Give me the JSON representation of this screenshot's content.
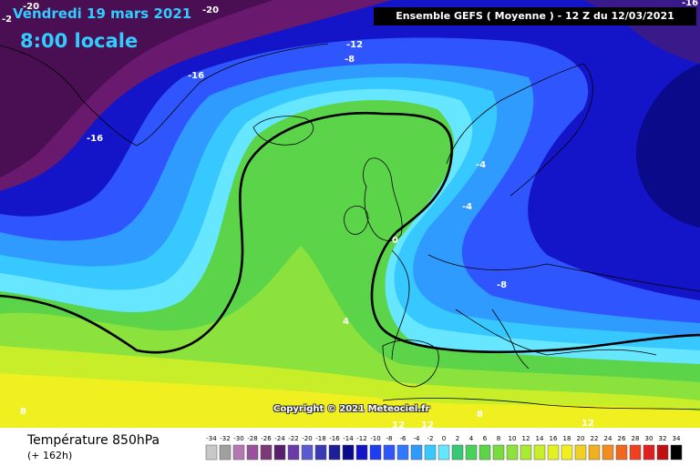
{
  "header": {
    "date_label": "Vendredi 19 mars 2021",
    "time_label": "8:00 locale",
    "ensemble_label": "Ensemble GEFS  ( Moyenne )  - 12 Z du 12/03/2021"
  },
  "map": {
    "copyright": "Copyright © 2021 Meteociel.fr",
    "contour_labels": [
      "-20",
      "-20",
      "-16",
      "-2",
      "-16",
      "-12",
      "-8",
      "-4",
      "-4",
      "0",
      "-8",
      "4",
      "8",
      "8",
      "12",
      "12",
      "12",
      "-16"
    ],
    "colors": {
      "purple": "#6a1a6e",
      "dark_blue": "#1414c8",
      "blue": "#2f55ff",
      "sky": "#2f9bff",
      "light_sky": "#36c8ff",
      "cyan": "#66e6ff",
      "green": "#5cd44a",
      "light_green": "#8ce23c",
      "yellow_green": "#c8ee2a",
      "yellow": "#f0f020"
    }
  },
  "legend": {
    "title": "Température 850hPa",
    "subtitle": "(+ 162h)",
    "scale_values": [
      "-34",
      "-32",
      "-30",
      "-28",
      "-26",
      "-24",
      "-22",
      "-20",
      "-18",
      "-16",
      "-14",
      "-12",
      "-10",
      "-8",
      "-6",
      "-4",
      "-2",
      "0",
      "2",
      "4",
      "6",
      "8",
      "10",
      "12",
      "14",
      "16",
      "18",
      "20",
      "22",
      "24",
      "26",
      "28",
      "30",
      "32",
      "34"
    ],
    "scale_colors": [
      "#c8c8c8",
      "#a0a0a0",
      "#b478b4",
      "#9a509a",
      "#7a3a7a",
      "#5a1e6e",
      "#6a3aaa",
      "#5a5ad2",
      "#3a3ab4",
      "#1e1e9a",
      "#0a0a8a",
      "#1414c8",
      "#1e3cf0",
      "#2f55ff",
      "#2f78ff",
      "#2f9bff",
      "#36c8ff",
      "#66e6ff",
      "#38c878",
      "#48d25a",
      "#5cd44a",
      "#78dc3c",
      "#8ce23c",
      "#aaea30",
      "#c8ee2a",
      "#e4f020",
      "#f0f020",
      "#f0d020",
      "#f0b020",
      "#f08c20",
      "#f06820",
      "#f04020",
      "#e02020",
      "#c01010",
      "#000000"
    ]
  }
}
